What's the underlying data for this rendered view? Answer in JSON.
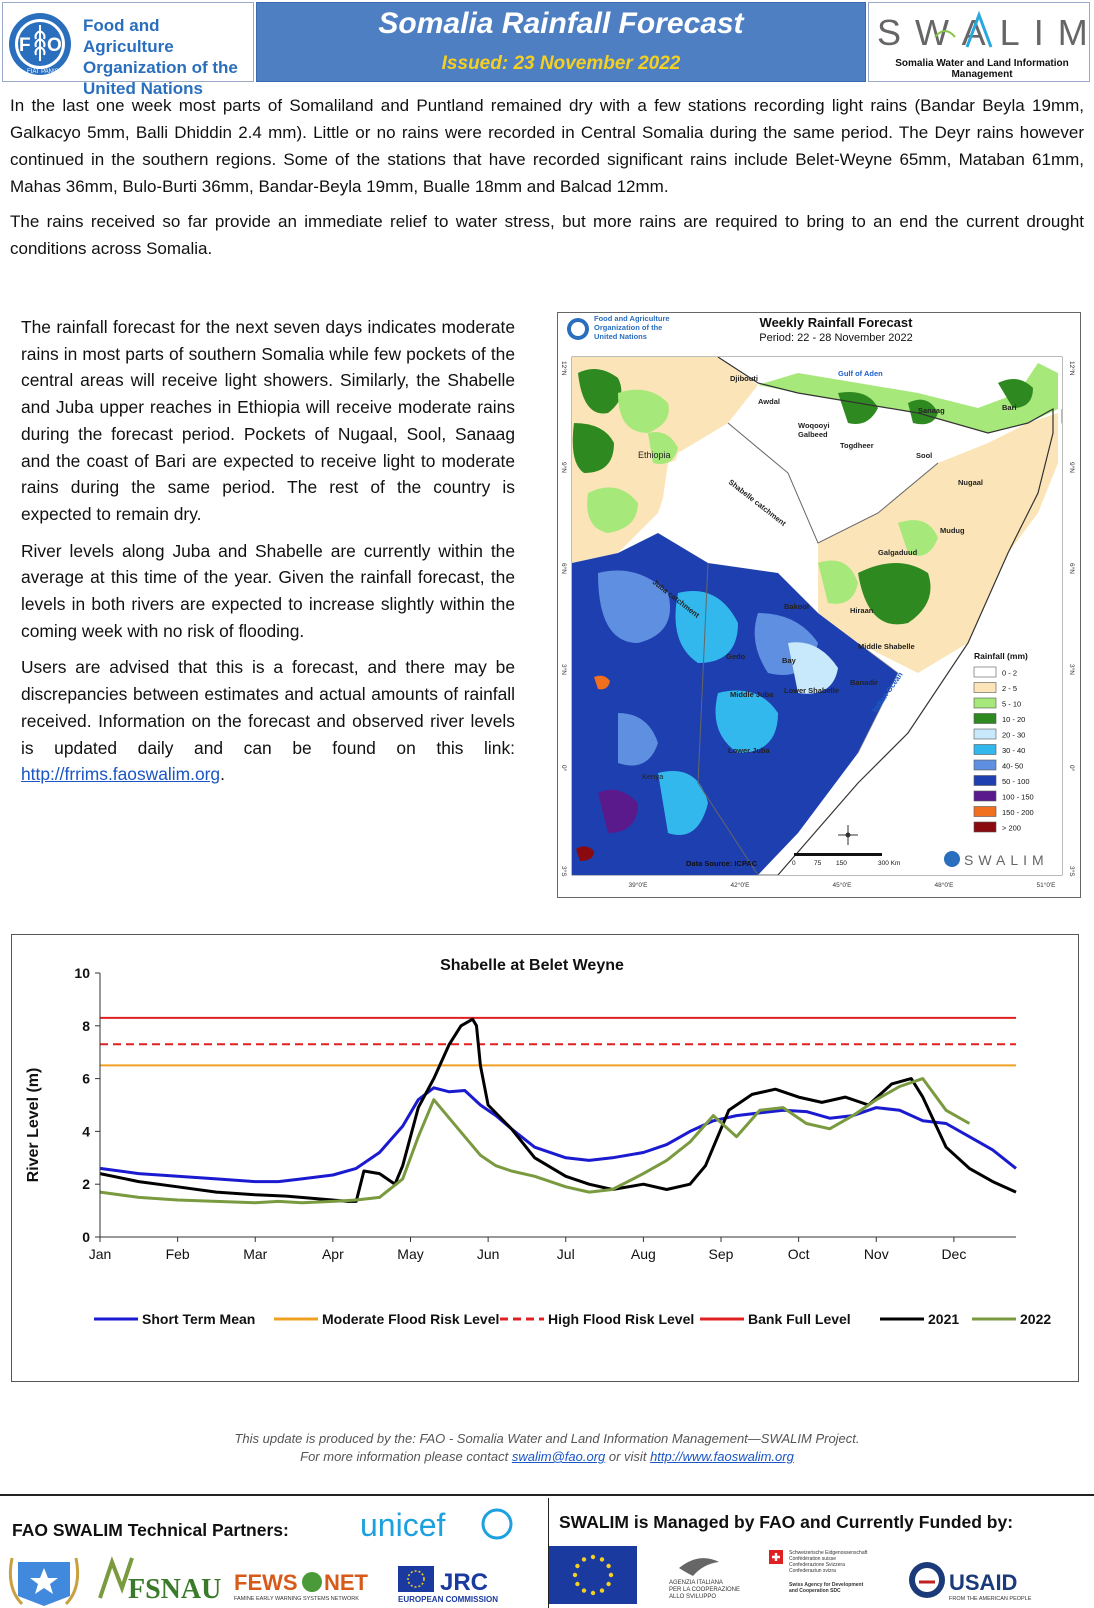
{
  "header": {
    "org_line1": "Food and Agriculture",
    "org_line2": "Organization of the",
    "org_line3": "United Nations",
    "fao_seal_text": "FIAT PANIS",
    "title": "Somalia Rainfall Forecast",
    "issued": "Issued: 23 November 2022",
    "swalim_logo": "SWALIM",
    "swalim_sub": "Somalia Water and Land Information Management"
  },
  "intro": {
    "p1": "In the last one week most parts of Somaliland and Puntland remained dry with a few stations recording light rains (Bandar Beyla 19mm, Galkacyo 5mm, Balli Dhiddin 2.4 mm). Little or no rains were recorded in Central Somalia during the same period. The Deyr rains however continued in the southern regions. Some of the stations that have recorded significant rains include Belet-Weyne 65mm, Mataban 61mm, Mahas 36mm, Bulo-Burti 36mm, Bandar-Beyla 19mm, Bualle 18mm and Balcad 12mm.",
    "p2": "The rains received so far provide an immediate relief to water stress, but more rains are required to bring to an end the current drought conditions across Somalia."
  },
  "body": {
    "p1": "The rainfall forecast for the next seven days indicates moderate rains in most parts of southern Somalia while few pockets of the central areas will receive light showers. Similarly, the Shabelle and Juba upper reaches in Ethiopia will receive moderate rains during the forecast period. Pockets of Nugaal, Sool, Sanaag and the coast of Bari are expected to receive light to moderate rains during the same period. The rest of the country is expected to remain dry.",
    "p2": "River levels along Juba and Shabelle are currently within the average at this time of the year. Given the rainfall forecast, the levels in both rivers are expected to increase slightly within the coming week with no risk of flooding.",
    "p3": "Users are advised that this is a forecast, and there may be discrepancies between estimates and actual amounts of rainfall received. Information on the forecast and observed river levels is updated daily and can be found on this link: ",
    "link": "http://frrims.faoswalim.org",
    "p3_end": "."
  },
  "map": {
    "org_line1": "Food and Agriculture",
    "org_line2": "Organization of the",
    "org_line3": "United Nations",
    "title": "Weekly Rainfall Forecast",
    "period": "Period: 22 - 28 November 2022",
    "legend_title": "Rainfall (mm)",
    "legend": [
      {
        "label": "0 - 2",
        "color": "#ffffff"
      },
      {
        "label": "2 - 5",
        "color": "#fbe5b8"
      },
      {
        "label": "5 - 10",
        "color": "#a6e87a"
      },
      {
        "label": "10 - 20",
        "color": "#2e8a20"
      },
      {
        "label": "20 - 30",
        "color": "#c8e8fb"
      },
      {
        "label": "30 - 40",
        "color": "#33b8ee"
      },
      {
        "label": "40- 50",
        "color": "#5f8fe0"
      },
      {
        "label": "50 - 100",
        "color": "#1e3fb0"
      },
      {
        "label": "100 - 150",
        "color": "#5a1a8c"
      },
      {
        "label": "150 - 200",
        "color": "#f07020"
      },
      {
        "label": "> 200",
        "color": "#8a0a10"
      }
    ],
    "places": {
      "gulf": "Gulf of Aden",
      "djibouti": "Djibouti",
      "awdal": "Awdal",
      "woqooyi": "Woqooyi",
      "galbeed": "Galbeed",
      "togdheer": "Togdheer",
      "sanaag": "Sanaag",
      "bari": "Bari",
      "sool": "Sool",
      "nugaal": "Nugaal",
      "ethiopia": "Ethiopia",
      "mudug": "Mudug",
      "galgaduud": "Galgaduud",
      "shabelle_catchment": "Shabelle catchment",
      "juba_catchment": "Juba catchment",
      "bakool": "Bakool",
      "hiraan": "Hiraan",
      "gedo": "Gedo",
      "bay": "Bay",
      "middle_shabelle": "Middle Shabelle",
      "banadir": "Banadir",
      "lower_shabelle": "Lower Shabelle",
      "middle_juba": "Middle Juba",
      "lower_juba": "Lower Juba",
      "kenya": "Kenya",
      "indian_ocean": "Indian Ocean"
    },
    "lat_labels": [
      "12°N",
      "9°N",
      "6°N",
      "3°N",
      "0°",
      "3°S"
    ],
    "lon_labels": [
      "39°0'E",
      "42°0'E",
      "45°0'E",
      "48°0'E",
      "51°0'E"
    ],
    "data_source": "Data Source: ICPAC",
    "scale_labels": [
      "0",
      "75",
      "150",
      "300 Km"
    ],
    "swalim": "SWALIM"
  },
  "chart_data": {
    "type": "line",
    "title": "Shabelle at Belet Weyne",
    "ylabel": "River Level (m)",
    "xlabel": "",
    "ylim": [
      0,
      10
    ],
    "yticks": [
      0,
      2,
      4,
      6,
      8,
      10
    ],
    "months": [
      "Jan",
      "Feb",
      "Mar",
      "Apr",
      "May",
      "Jun",
      "Jul",
      "Aug",
      "Sep",
      "Oct",
      "Nov",
      "Dec"
    ],
    "grid": false,
    "legend_position": "bottom",
    "thresholds": [
      {
        "name": "Moderate Flood Risk Level",
        "value": 6.5,
        "color": "#f0a020",
        "style": "solid"
      },
      {
        "name": "High Flood Risk Level",
        "value": 7.3,
        "color": "#e02020",
        "style": "dashed"
      },
      {
        "name": "Bank Full Level",
        "value": 8.3,
        "color": "#e02020",
        "style": "solid"
      }
    ],
    "series": [
      {
        "name": "Short Term Mean",
        "color": "#1a1ad0",
        "x": [
          0,
          0.5,
          1,
          1.5,
          2,
          2.3,
          2.6,
          3,
          3.3,
          3.6,
          3.9,
          4.1,
          4.3,
          4.5,
          4.7,
          4.9,
          5.1,
          5.3,
          5.6,
          6,
          6.3,
          6.6,
          7,
          7.3,
          7.6,
          7.9,
          8.2,
          8.5,
          8.8,
          9.1,
          9.4,
          9.7,
          10,
          10.3,
          10.6,
          10.9,
          11.2,
          11.5,
          11.8
        ],
        "y": [
          2.6,
          2.4,
          2.3,
          2.2,
          2.1,
          2.1,
          2.2,
          2.35,
          2.6,
          3.2,
          4.2,
          5.2,
          5.65,
          5.5,
          5.55,
          5.0,
          4.6,
          4.1,
          3.4,
          3.0,
          2.9,
          3.0,
          3.2,
          3.5,
          4.0,
          4.4,
          4.6,
          4.7,
          4.8,
          4.75,
          4.5,
          4.6,
          4.9,
          4.8,
          4.4,
          4.3,
          3.8,
          3.3,
          2.6
        ]
      },
      {
        "name": "2021",
        "color": "#000000",
        "x": [
          0,
          0.5,
          1,
          1.5,
          2,
          2.4,
          2.8,
          3.2,
          3.3,
          3.4,
          3.6,
          3.8,
          3.9,
          4.1,
          4.3,
          4.5,
          4.65,
          4.8,
          4.85,
          4.9,
          5.0,
          5.3,
          5.6,
          6,
          6.3,
          6.6,
          7,
          7.3,
          7.6,
          7.8,
          8.1,
          8.4,
          8.7,
          9.0,
          9.3,
          9.6,
          9.9,
          10.2,
          10.45,
          10.6,
          10.9,
          11.2,
          11.5,
          11.8
        ],
        "y": [
          2.4,
          2.1,
          1.9,
          1.7,
          1.6,
          1.55,
          1.45,
          1.35,
          1.35,
          2.5,
          2.4,
          2.0,
          2.7,
          4.9,
          6.0,
          7.3,
          8.0,
          8.25,
          8.0,
          6.5,
          5.0,
          4.1,
          3.0,
          2.3,
          2.0,
          1.8,
          2.0,
          1.8,
          2.0,
          2.7,
          4.8,
          5.4,
          5.6,
          5.3,
          5.1,
          5.3,
          5.0,
          5.8,
          6.0,
          5.3,
          3.4,
          2.6,
          2.1,
          1.7
        ]
      },
      {
        "name": "2022",
        "color": "#7a9a40",
        "x": [
          0,
          0.5,
          1,
          1.5,
          2,
          2.3,
          2.6,
          3,
          3.3,
          3.6,
          3.9,
          4.1,
          4.3,
          4.5,
          4.7,
          4.9,
          5.1,
          5.3,
          5.6,
          6,
          6.3,
          6.6,
          7,
          7.3,
          7.6,
          7.9,
          8.2,
          8.5,
          8.8,
          9.1,
          9.4,
          9.7,
          10,
          10.3,
          10.6,
          10.9,
          11.2,
          11.5
        ],
        "y": [
          1.7,
          1.5,
          1.4,
          1.35,
          1.3,
          1.35,
          1.3,
          1.35,
          1.4,
          1.5,
          2.2,
          3.8,
          5.2,
          4.5,
          3.8,
          3.1,
          2.7,
          2.5,
          2.3,
          1.9,
          1.7,
          1.8,
          2.4,
          2.9,
          3.6,
          4.6,
          3.8,
          4.8,
          4.9,
          4.3,
          4.1,
          4.6,
          5.2,
          5.7,
          6.0,
          4.8,
          4.3,
          null
        ]
      }
    ]
  },
  "credit": {
    "line1": "This update is produced by the: FAO - Somalia Water and Land Information Management—SWALIM Project.",
    "line2_pre": "For more information please contact ",
    "email": "swalim@fao.org",
    "line2_mid": " or visit ",
    "website": "http://www.faoswalim.org"
  },
  "footer": {
    "partners_title": "FAO SWALIM Technical Partners:",
    "funders_title": "SWALIM is Managed by FAO and Currently Funded by:",
    "partners": {
      "unicef": "unicef",
      "fsnau": "FSNAU",
      "fews1": "FEWS",
      "fews2": "NET",
      "fews_sub": "FAMINE EARLY WARNING SYSTEMS NETWORK",
      "jrc": "JRC",
      "jrc_sub": "EUROPEAN COMMISSION"
    },
    "funders": {
      "italy1": "AGENZIA ITALIANA",
      "italy2": "PER LA COOPERAZIONE",
      "italy3": "ALLO SVILUPPO",
      "swiss1": "Schweizerische Eidgenossenschaft",
      "swiss2": "Confédération suisse",
      "swiss3": "Confederazione Svizzera",
      "swiss4": "Confederaziun svizra",
      "swiss5": "Swiss Agency for Development",
      "swiss6": "and Cooperation SDC",
      "usaid": "USAID",
      "usaid_sub": "FROM THE AMERICAN PEOPLE"
    },
    "colors": {
      "unicef": "#1ca0e0",
      "usaid": "#1a3a7a",
      "eu": "#1a3aa0",
      "eu_star": "#f5d020"
    }
  }
}
